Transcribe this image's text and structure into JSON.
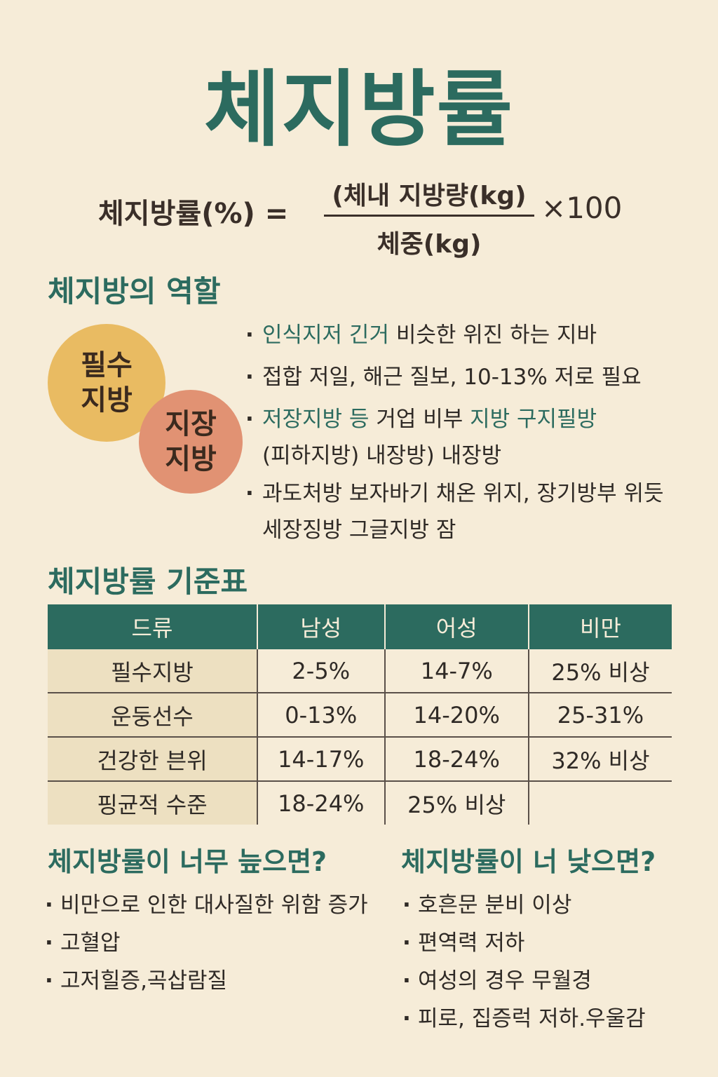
{
  "title": "체지방률",
  "formula": {
    "lhs": "체지방률(%) =",
    "numerator": "(체내 지방량(kg)",
    "denominator": "체중(kg)",
    "multiplier": "×100"
  },
  "roles_section": {
    "heading": "체지방의 역할",
    "circle_essential": "필수\n지방",
    "circle_storage": "지장\n지방",
    "items": [
      {
        "green": "인식지저 긴거",
        "rest": " 비슷한 위진 하는 지바"
      },
      {
        "green": "",
        "rest": "접합 저일, 해근 질보, 10-13% 저로 필요"
      },
      {
        "green": "저장지방 등",
        "rest": " 거업 비부 ",
        "green2": "지방 구지필방",
        "line2": "(피하지방) 내장방) 내장방"
      },
      {
        "green": "",
        "rest": "과도처방 보자바기 채온 위지, 장기방부 위듯",
        "line2": "세장징방 그글지방 잠"
      }
    ]
  },
  "table_section": {
    "heading": "체지방률 기준표",
    "headers": [
      "드류",
      "남성",
      "어성",
      "비만"
    ],
    "rows": [
      [
        "필수지방",
        "2-5%",
        "14-7%",
        "25% 비상"
      ],
      [
        "운둥선수",
        "0-13%",
        "14-20%",
        "25-31%"
      ],
      [
        "건강한 븐위",
        "14-17%",
        "18-24%",
        "32% 비상"
      ],
      [
        "핑균적 수준",
        "18-24%",
        "25% 비상",
        ""
      ]
    ]
  },
  "too_high": {
    "heading": "체지방률이 너무 늪으면?",
    "items": [
      "비만으로 인한 대사질한 위함 증가",
      "고혈압",
      "고저힐증,곡삽람질"
    ]
  },
  "too_low": {
    "heading": "체지방률이 너 낮으면?",
    "items": [
      "호흔문 분비 이상",
      "편역력 저하",
      "여성의 경우 무월경",
      "피로, 집증럭 저하.우울감"
    ]
  },
  "colors": {
    "background": "#f6ecd8",
    "accent_green": "#2c6b5f",
    "essential_circle": "#e9bb62",
    "storage_circle": "#e19273",
    "text": "#2f2a26"
  }
}
